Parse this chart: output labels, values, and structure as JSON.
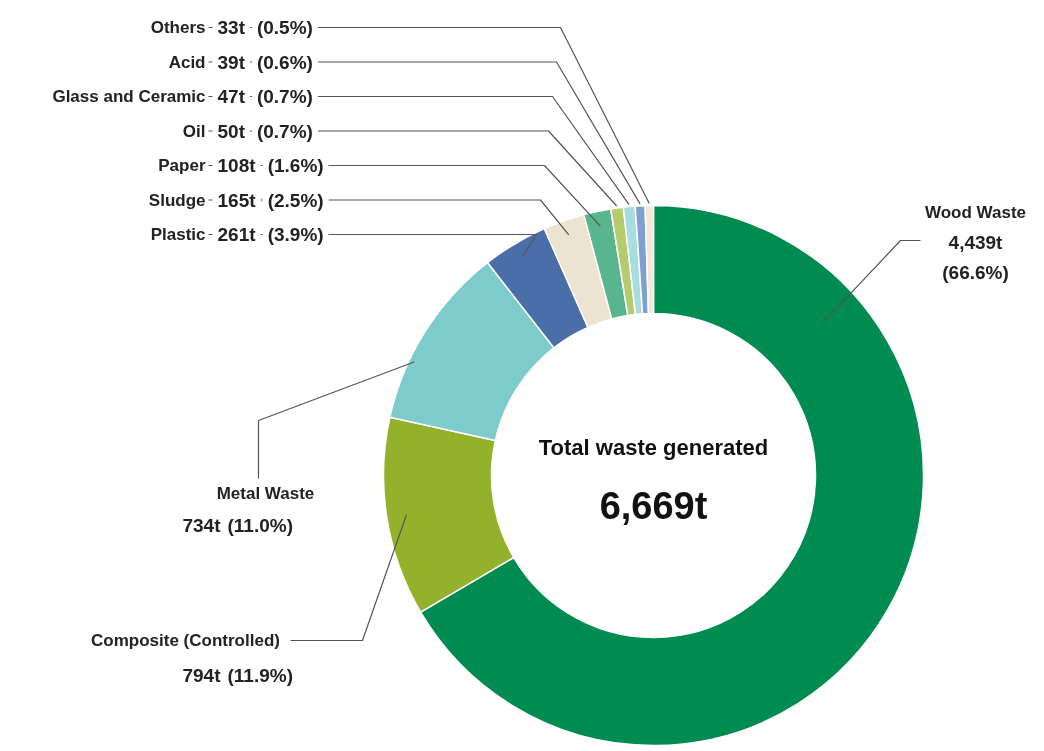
{
  "chart_data": {
    "type": "donut",
    "categories": [
      "Wood Waste",
      "Composite (Controlled)",
      "Metal Waste",
      "Plastic",
      "Sludge",
      "Paper",
      "Oil",
      "Glass and Ceramic",
      "Acid",
      "Others"
    ],
    "values": [
      4439,
      794,
      734,
      261,
      165,
      108,
      50,
      47,
      39,
      33
    ],
    "colors": [
      "#008c50",
      "#93b12a",
      "#7ecbcb",
      "#4a6fa8",
      "#ece3d0",
      "#58b58e",
      "#b5cc6e",
      "#a8dde0",
      "#7f9fd0",
      "#f0e8d8"
    ],
    "value_labels": [
      "4,439t",
      "794t",
      "734t",
      "261t",
      "165t",
      "108t",
      "50t",
      "47t",
      "39t",
      "33t"
    ],
    "annotations": [
      "Total waste generated",
      "6,669t",
      "(66.6%)",
      "(11.9%)",
      "(11.0%)",
      "(3.9%)",
      "(2.5%)",
      "(1.6%)",
      "(0.7%)",
      "(0.7%)",
      "(0.6%)",
      "(0.5%)"
    ]
  }
}
